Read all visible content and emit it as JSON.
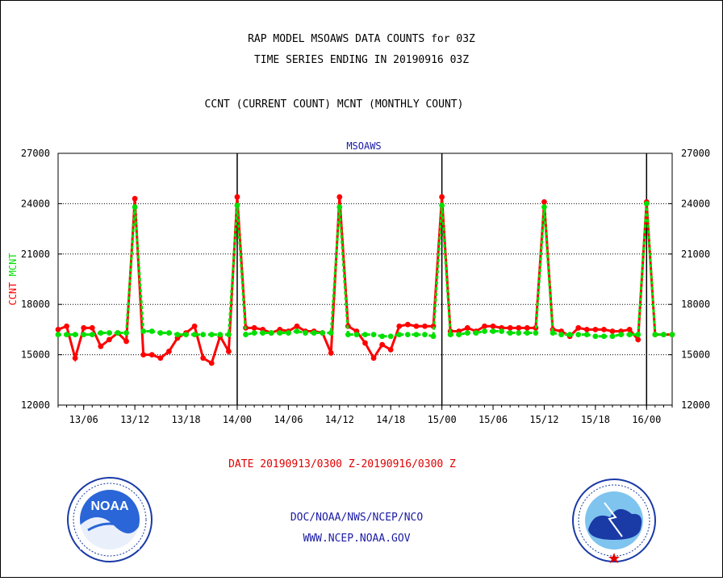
{
  "titles": {
    "line1": "RAP MODEL MSOAWS DATA COUNTS for 03Z",
    "line2": "TIME SERIES ENDING IN 20190916 03Z",
    "line3": "CCNT (CURRENT COUNT) MCNT (MONTHLY COUNT)"
  },
  "chart_label": "MSOAWS",
  "date_range": "DATE 20190913/0300 Z-20190916/0300 Z",
  "footer": {
    "line1": "DOC/NOAA/NWS/NCEP/NCO",
    "line2": "WWW.NCEP.NOAA.GOV"
  },
  "logos": {
    "noaa_text": "NOAA",
    "nws_text": "NATIONAL WEATHER SERVICE"
  },
  "colors": {
    "ccnt": "#ff0000",
    "mcnt": "#00e000",
    "label_blue": "#1a1aa6"
  },
  "chart_data": {
    "type": "line",
    "title": "MSOAWS",
    "ylim": [
      12000,
      27000
    ],
    "y_ticks": [
      12000,
      15000,
      18000,
      21000,
      24000,
      27000
    ],
    "y_tick_labels": [
      "12000",
      "15000",
      "18000",
      "21000",
      "24000",
      "27000"
    ],
    "ylabel_parts": [
      {
        "text": "CCNT",
        "color": "#ff0000"
      },
      {
        "text": "MCNT",
        "color": "#00e000"
      }
    ],
    "x_start": "2019-09-13 03:00",
    "x_end": "2019-09-16 03:00",
    "x_step_hours": 1,
    "x_ticks": [
      {
        "hour": 3,
        "label": "13/06"
      },
      {
        "hour": 9,
        "label": "13/12"
      },
      {
        "hour": 15,
        "label": "13/18"
      },
      {
        "hour": 21,
        "label": "14/00"
      },
      {
        "hour": 27,
        "label": "14/06"
      },
      {
        "hour": 33,
        "label": "14/12"
      },
      {
        "hour": 39,
        "label": "14/18"
      },
      {
        "hour": 45,
        "label": "15/00"
      },
      {
        "hour": 51,
        "label": "15/06"
      },
      {
        "hour": 57,
        "label": "15/12"
      },
      {
        "hour": 63,
        "label": "15/18"
      },
      {
        "hour": 69,
        "label": "16/00"
      }
    ],
    "day_boundaries": [
      21,
      45,
      69
    ],
    "grid": "horizontal dotted",
    "series": [
      {
        "name": "CCNT",
        "color": "#ff0000",
        "values": [
          16500,
          16700,
          14800,
          16600,
          16600,
          15500,
          15900,
          16300,
          15800,
          24300,
          15000,
          15000,
          14800,
          15200,
          16000,
          16300,
          16700,
          14800,
          14500,
          16100,
          15200,
          24400,
          16600,
          16600,
          16500,
          16300,
          16500,
          16400,
          16700,
          16400,
          16400,
          16300,
          15100,
          24400,
          16700,
          16400,
          15700,
          14800,
          15600,
          15300,
          16700,
          16800,
          16700,
          16700,
          16700,
          24400,
          16400,
          16400,
          16600,
          16400,
          16700,
          16700,
          16600,
          16600,
          16600,
          16600,
          16600,
          24100,
          16500,
          16400,
          16100,
          16600,
          16500,
          16500,
          16500,
          16400,
          16400,
          16500,
          15900,
          24100,
          16200,
          16200,
          16200
        ]
      },
      {
        "name": "MCNT",
        "color": "#00e000",
        "values": [
          16200,
          16200,
          16200,
          16200,
          16200,
          16300,
          16300,
          16300,
          16300,
          23800,
          16400,
          16400,
          16300,
          16300,
          16200,
          16200,
          16200,
          16200,
          16200,
          16200,
          16200,
          23900,
          16200,
          16300,
          16300,
          16300,
          16300,
          16300,
          16400,
          16300,
          16300,
          16300,
          16300,
          23800,
          16200,
          16200,
          16200,
          16200,
          16100,
          16100,
          16200,
          16200,
          16200,
          16200,
          16100,
          23900,
          16200,
          16200,
          16300,
          16300,
          16400,
          16400,
          16400,
          16300,
          16300,
          16300,
          16300,
          23800,
          16300,
          16200,
          16200,
          16200,
          16200,
          16100,
          16100,
          16100,
          16200,
          16200,
          16200,
          24000,
          16200,
          16200,
          16200
        ]
      }
    ]
  }
}
